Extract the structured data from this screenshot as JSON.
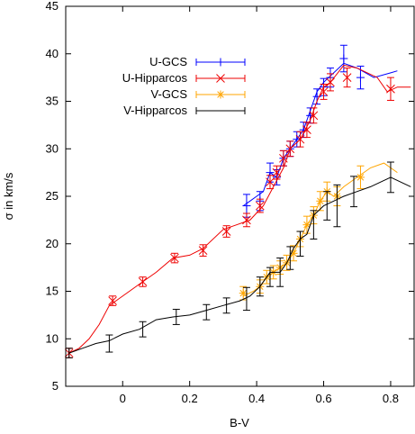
{
  "chart_data": {
    "type": "scatter",
    "title": "",
    "xlabel": "B-V",
    "ylabel": "σ in km/s",
    "xlim": [
      -0.17,
      0.87
    ],
    "ylim": [
      5,
      45
    ],
    "x_ticks": [
      0,
      0.2,
      0.4,
      0.6,
      0.8
    ],
    "y_ticks": [
      5,
      10,
      15,
      20,
      25,
      30,
      35,
      40,
      45
    ],
    "x_tick_labels": [
      "0",
      "0.2",
      "0.4",
      "0.6",
      "0.8"
    ],
    "y_tick_labels": [
      "5",
      "10",
      "15",
      "20",
      "25",
      "30",
      "35",
      "40",
      "45"
    ],
    "grid": false,
    "legend_position": "top-left",
    "series": [
      {
        "name": "U-GCS",
        "color": "#0000ff",
        "marker": "plus",
        "line": [
          [
            0.36,
            24
          ],
          [
            0.38,
            24.5
          ],
          [
            0.4,
            25
          ],
          [
            0.42,
            25.5
          ],
          [
            0.44,
            27.5
          ],
          [
            0.46,
            27
          ],
          [
            0.48,
            29
          ],
          [
            0.5,
            30
          ],
          [
            0.52,
            31
          ],
          [
            0.54,
            32
          ],
          [
            0.56,
            34
          ],
          [
            0.58,
            36
          ],
          [
            0.6,
            37
          ],
          [
            0.63,
            38
          ],
          [
            0.66,
            39
          ],
          [
            0.7,
            38.5
          ],
          [
            0.75,
            37.5
          ],
          [
            0.8,
            38
          ],
          [
            0.82,
            38.2
          ]
        ],
        "points": [
          {
            "x": 0.37,
            "y": 24,
            "err": 1.2
          },
          {
            "x": 0.41,
            "y": 24.5,
            "err": 1.0
          },
          {
            "x": 0.44,
            "y": 27.5,
            "err": 1.0
          },
          {
            "x": 0.46,
            "y": 27,
            "err": 0.8
          },
          {
            "x": 0.48,
            "y": 29,
            "err": 0.8
          },
          {
            "x": 0.5,
            "y": 30,
            "err": 0.8
          },
          {
            "x": 0.52,
            "y": 31,
            "err": 0.8
          },
          {
            "x": 0.54,
            "y": 32,
            "err": 0.8
          },
          {
            "x": 0.56,
            "y": 33.5,
            "err": 0.8
          },
          {
            "x": 0.58,
            "y": 35.5,
            "err": 0.8
          },
          {
            "x": 0.6,
            "y": 36.5,
            "err": 0.9
          },
          {
            "x": 0.62,
            "y": 37.5,
            "err": 1.0
          },
          {
            "x": 0.66,
            "y": 39.5,
            "err": 1.4
          },
          {
            "x": 0.71,
            "y": 37.5,
            "err": 1.2
          }
        ]
      },
      {
        "name": "U-Hipparcos",
        "color": "#ee0000",
        "marker": "cross",
        "line": [
          [
            -0.16,
            8.5
          ],
          [
            -0.13,
            9
          ],
          [
            -0.1,
            10
          ],
          [
            -0.07,
            11.5
          ],
          [
            -0.04,
            13.5
          ],
          [
            -0.02,
            14
          ],
          [
            0.02,
            15
          ],
          [
            0.06,
            16
          ],
          [
            0.1,
            17
          ],
          [
            0.15,
            18.5
          ],
          [
            0.2,
            18.8
          ],
          [
            0.24,
            19.5
          ],
          [
            0.3,
            21.5
          ],
          [
            0.34,
            22
          ],
          [
            0.38,
            22.5
          ],
          [
            0.42,
            24
          ],
          [
            0.45,
            26
          ],
          [
            0.48,
            28
          ],
          [
            0.5,
            30
          ],
          [
            0.53,
            31
          ],
          [
            0.56,
            33
          ],
          [
            0.58,
            35
          ],
          [
            0.6,
            36.5
          ],
          [
            0.62,
            37
          ],
          [
            0.66,
            38.8
          ],
          [
            0.7,
            38.5
          ],
          [
            0.76,
            37.5
          ],
          [
            0.79,
            36
          ],
          [
            0.82,
            36.5
          ],
          [
            0.86,
            36.5
          ]
        ],
        "points": [
          {
            "x": -0.16,
            "y": 8.5,
            "err": 0.5
          },
          {
            "x": -0.03,
            "y": 14,
            "err": 0.5
          },
          {
            "x": 0.06,
            "y": 16,
            "err": 0.5
          },
          {
            "x": 0.155,
            "y": 18.5,
            "err": 0.5
          },
          {
            "x": 0.24,
            "y": 19.3,
            "err": 0.6
          },
          {
            "x": 0.31,
            "y": 21.3,
            "err": 0.6
          },
          {
            "x": 0.37,
            "y": 22.5,
            "err": 0.7
          },
          {
            "x": 0.41,
            "y": 24,
            "err": 0.7
          },
          {
            "x": 0.44,
            "y": 26.5,
            "err": 0.7
          },
          {
            "x": 0.46,
            "y": 27.5,
            "err": 0.7
          },
          {
            "x": 0.48,
            "y": 29,
            "err": 0.8
          },
          {
            "x": 0.5,
            "y": 30,
            "err": 0.8
          },
          {
            "x": 0.53,
            "y": 31,
            "err": 0.8
          },
          {
            "x": 0.55,
            "y": 32,
            "err": 0.8
          },
          {
            "x": 0.57,
            "y": 33.5,
            "err": 0.8
          },
          {
            "x": 0.6,
            "y": 36,
            "err": 0.8
          },
          {
            "x": 0.62,
            "y": 37,
            "err": 0.9
          },
          {
            "x": 0.67,
            "y": 37.5,
            "err": 1.0
          },
          {
            "x": 0.8,
            "y": 36.3,
            "err": 1.2
          }
        ]
      },
      {
        "name": "V-GCS",
        "color": "#ffa500",
        "marker": "star",
        "line": [
          [
            0.36,
            14.5
          ],
          [
            0.39,
            15
          ],
          [
            0.41,
            15.5
          ],
          [
            0.43,
            16.5
          ],
          [
            0.45,
            17
          ],
          [
            0.47,
            17.5
          ],
          [
            0.49,
            18
          ],
          [
            0.51,
            19
          ],
          [
            0.53,
            20.5
          ],
          [
            0.55,
            22
          ],
          [
            0.57,
            23
          ],
          [
            0.59,
            24.5
          ],
          [
            0.61,
            25.5
          ],
          [
            0.63,
            25
          ],
          [
            0.66,
            26
          ],
          [
            0.7,
            27
          ],
          [
            0.74,
            28
          ],
          [
            0.78,
            28.5
          ],
          [
            0.82,
            27.5
          ]
        ],
        "points": [
          {
            "x": 0.36,
            "y": 14.8,
            "err": 0.7
          },
          {
            "x": 0.41,
            "y": 15.5,
            "err": 0.7
          },
          {
            "x": 0.43,
            "y": 16.5,
            "err": 0.7
          },
          {
            "x": 0.45,
            "y": 17,
            "err": 0.7
          },
          {
            "x": 0.47,
            "y": 17.5,
            "err": 0.7
          },
          {
            "x": 0.49,
            "y": 18,
            "err": 0.8
          },
          {
            "x": 0.51,
            "y": 19,
            "err": 0.8
          },
          {
            "x": 0.53,
            "y": 20.5,
            "err": 0.8
          },
          {
            "x": 0.55,
            "y": 22,
            "err": 0.9
          },
          {
            "x": 0.57,
            "y": 23,
            "err": 0.9
          },
          {
            "x": 0.59,
            "y": 24.5,
            "err": 1.0
          },
          {
            "x": 0.61,
            "y": 25.5,
            "err": 1.0
          },
          {
            "x": 0.64,
            "y": 25,
            "err": 1.0
          },
          {
            "x": 0.71,
            "y": 27,
            "err": 1.2
          }
        ]
      },
      {
        "name": "V-Hipparcos",
        "color": "#000000",
        "marker": "none",
        "line": [
          [
            -0.16,
            8.5
          ],
          [
            -0.12,
            9
          ],
          [
            -0.08,
            9.5
          ],
          [
            -0.04,
            9.8
          ],
          [
            0.0,
            10.5
          ],
          [
            0.05,
            11
          ],
          [
            0.1,
            12
          ],
          [
            0.15,
            12.3
          ],
          [
            0.2,
            12.5
          ],
          [
            0.25,
            13
          ],
          [
            0.3,
            13.5
          ],
          [
            0.35,
            14
          ],
          [
            0.38,
            14.5
          ],
          [
            0.41,
            15.5
          ],
          [
            0.44,
            17
          ],
          [
            0.47,
            17
          ],
          [
            0.49,
            18
          ],
          [
            0.51,
            19.5
          ],
          [
            0.53,
            20.5
          ],
          [
            0.55,
            21
          ],
          [
            0.57,
            23
          ],
          [
            0.6,
            24
          ],
          [
            0.63,
            24.5
          ],
          [
            0.66,
            25
          ],
          [
            0.7,
            25.5
          ],
          [
            0.74,
            26
          ],
          [
            0.8,
            27
          ],
          [
            0.86,
            26
          ]
        ],
        "points": [
          {
            "x": -0.16,
            "y": 8.5,
            "err": 0.5
          },
          {
            "x": -0.04,
            "y": 9.5,
            "err": 0.9
          },
          {
            "x": 0.06,
            "y": 11,
            "err": 0.8
          },
          {
            "x": 0.16,
            "y": 12.3,
            "err": 0.8
          },
          {
            "x": 0.25,
            "y": 12.8,
            "err": 0.8
          },
          {
            "x": 0.31,
            "y": 13.5,
            "err": 0.8
          },
          {
            "x": 0.37,
            "y": 14.2,
            "err": 1.2
          },
          {
            "x": 0.41,
            "y": 15.5,
            "err": 1.0
          },
          {
            "x": 0.44,
            "y": 16.5,
            "err": 1.0
          },
          {
            "x": 0.47,
            "y": 17,
            "err": 1.5
          },
          {
            "x": 0.5,
            "y": 18.5,
            "err": 1.2
          },
          {
            "x": 0.53,
            "y": 20,
            "err": 1.3
          },
          {
            "x": 0.57,
            "y": 22,
            "err": 1.5
          },
          {
            "x": 0.61,
            "y": 24,
            "err": 1.5
          },
          {
            "x": 0.64,
            "y": 24,
            "err": 2.2
          },
          {
            "x": 0.69,
            "y": 25.5,
            "err": 1.6
          },
          {
            "x": 0.8,
            "y": 27,
            "err": 1.6
          }
        ]
      }
    ]
  }
}
